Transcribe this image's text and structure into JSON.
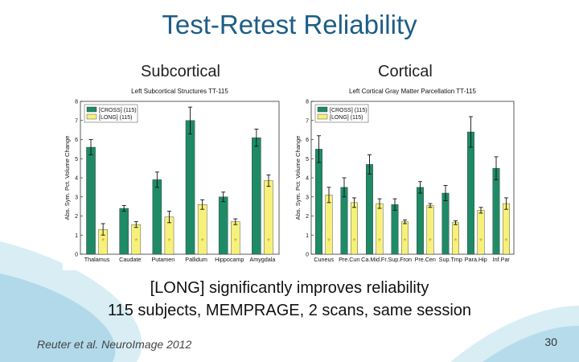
{
  "slide": {
    "title": "Test-Retest Reliability",
    "subheads": [
      "Subcortical",
      "Cortical"
    ],
    "body": [
      "[LONG] significantly improves reliability",
      "115 subjects, MEMPRAGE, 2 scans, same session"
    ],
    "citation": "Reuter et al. NeuroImage 2012",
    "page_number": "30",
    "colors": {
      "accent": "#1d5d86",
      "cross": "#1f8a66",
      "long": "#f6f17a",
      "star": "#d89a2a"
    }
  },
  "chart_data": [
    {
      "type": "bar",
      "title": "Left Subcortical Structures TT-115",
      "ylabel": "Abs. Sym. Pct. Volume Change",
      "xlabel": "",
      "ylim": [
        0,
        8
      ],
      "yticks": [
        "0",
        "1",
        "2",
        "3",
        "4",
        "5",
        "6",
        "7",
        "8"
      ],
      "categories": [
        "Thalamus",
        "Caudate",
        "Putamen",
        "Pallidum",
        "Hippocamp",
        "Amygdala"
      ],
      "series": [
        {
          "name": "[CROSS] (115)",
          "values": [
            5.6,
            2.4,
            3.9,
            7.0,
            3.0,
            6.1
          ],
          "errors": [
            0.4,
            0.15,
            0.4,
            0.7,
            0.25,
            0.45
          ]
        },
        {
          "name": "[LONG] (115)",
          "values": [
            1.3,
            1.55,
            1.95,
            2.6,
            1.7,
            3.85
          ],
          "errors": [
            0.3,
            0.15,
            0.3,
            0.25,
            0.15,
            0.3
          ]
        }
      ],
      "significance": [
        "*",
        "*",
        "*",
        "*",
        "*",
        "*"
      ],
      "legend": "top-left"
    },
    {
      "type": "bar",
      "title": "Left Cortical Gray Matter Parcellation TT-115",
      "ylabel": "Abs. Sym. Pct. Volume Change",
      "xlabel": "",
      "ylim": [
        0,
        8
      ],
      "yticks": [
        "0",
        "1",
        "2",
        "3",
        "4",
        "5",
        "6",
        "7",
        "8"
      ],
      "categories": [
        "Cuneus",
        "Pre.Cun",
        "Ca.Mid.Fr.",
        "Sup.Fron",
        "Pre.Cen",
        "Sup.Tmp",
        "Para.Hip",
        "Inf.Par"
      ],
      "series": [
        {
          "name": "[CROSS] (115)",
          "values": [
            5.5,
            3.5,
            4.7,
            2.6,
            3.5,
            3.2,
            6.4,
            4.5
          ],
          "errors": [
            0.7,
            0.5,
            0.5,
            0.3,
            0.3,
            0.4,
            0.8,
            0.6
          ]
        },
        {
          "name": "[LONG] (115)",
          "values": [
            3.1,
            2.7,
            2.65,
            1.7,
            2.55,
            1.65,
            2.3,
            2.65
          ],
          "errors": [
            0.4,
            0.25,
            0.25,
            0.1,
            0.1,
            0.1,
            0.15,
            0.3
          ]
        }
      ],
      "significance": [
        "*",
        "*",
        "*",
        "*",
        "*",
        "*",
        "*",
        "*"
      ],
      "legend": "top-left"
    }
  ]
}
